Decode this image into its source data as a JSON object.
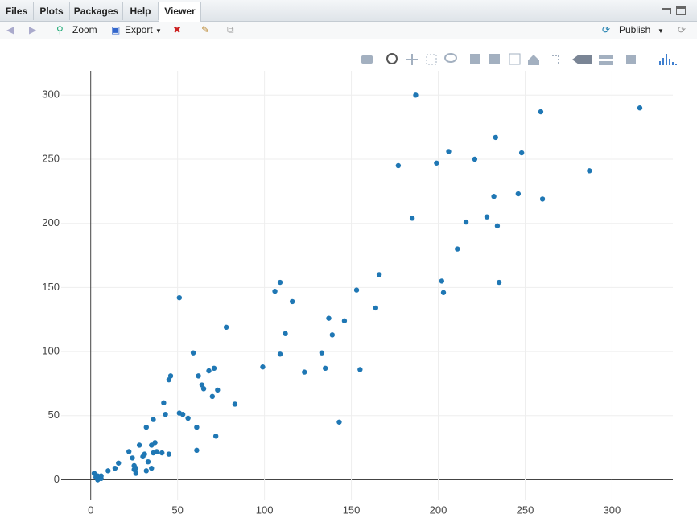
{
  "tabs": [
    "Files",
    "Plots",
    "Packages",
    "Help",
    "Viewer"
  ],
  "toolbar": {
    "zoom": "Zoom",
    "export": "Export",
    "publish": "Publish"
  },
  "chart_data": {
    "type": "scatter",
    "color": "#1f77b4",
    "grid": true,
    "x": [
      187,
      316,
      259,
      233,
      206,
      248,
      221,
      199,
      177,
      287,
      246,
      232,
      260,
      228,
      185,
      216,
      234,
      211,
      166,
      202,
      235,
      109,
      106,
      153,
      203,
      51,
      116,
      164,
      137,
      146,
      78,
      112,
      139,
      59,
      109,
      133,
      99,
      135,
      71,
      68,
      155,
      123,
      62,
      46,
      45,
      64,
      65,
      73,
      70,
      42,
      83,
      51,
      53,
      43,
      56,
      36,
      143,
      32,
      61,
      72,
      37,
      35,
      28,
      22,
      38,
      41,
      45,
      36,
      31,
      30,
      61,
      24,
      33,
      16,
      35,
      14,
      25,
      25,
      32,
      26,
      26,
      10,
      2,
      4,
      6,
      6,
      3,
      4
    ],
    "y": [
      300,
      290,
      287,
      267,
      256,
      255,
      250,
      247,
      245,
      241,
      223,
      221,
      219,
      205,
      204,
      201,
      198,
      180,
      160,
      155,
      154,
      154,
      147,
      148,
      146,
      142,
      139,
      134,
      126,
      124,
      119,
      114,
      113,
      99,
      98,
      99,
      88,
      87,
      87,
      85,
      86,
      84,
      81,
      81,
      78,
      74,
      71,
      70,
      65,
      60,
      59,
      52,
      51,
      51,
      48,
      47,
      45,
      41,
      41,
      34,
      29,
      27,
      27,
      22,
      22,
      21,
      20,
      21,
      20,
      18,
      23,
      17,
      14,
      13,
      9,
      9,
      11,
      8,
      7,
      5,
      9,
      7,
      5,
      3,
      3,
      1,
      2,
      0
    ],
    "xlim": [
      -17,
      335
    ],
    "ylim": [
      -16,
      319
    ],
    "xticks": [
      0,
      50,
      100,
      150,
      200,
      250,
      300
    ],
    "yticks": [
      0,
      50,
      100,
      150,
      200,
      250,
      300
    ]
  }
}
